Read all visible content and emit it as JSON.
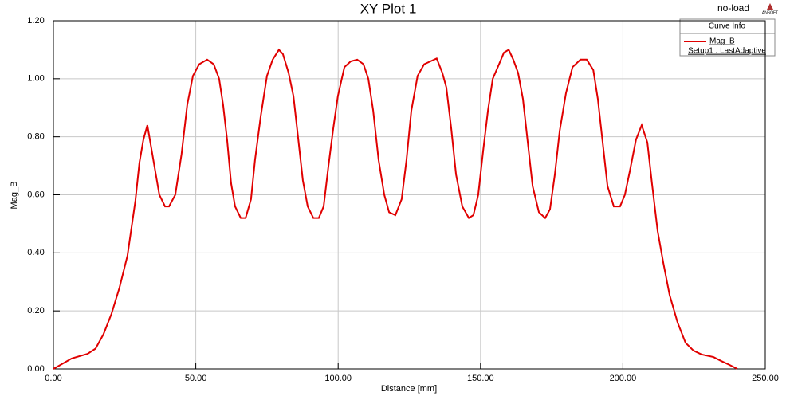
{
  "chart_data": {
    "type": "line",
    "title": "XY Plot 1",
    "annotation": "no-load",
    "logo": "ANSOFT",
    "x_label": "Distance [mm]",
    "y_label": "Mag_B",
    "legend_title": "Curve Info",
    "grid": true,
    "legend_position": "upper right",
    "xlim": [
      0,
      250
    ],
    "ylim": [
      0,
      1.2
    ],
    "xticks": [
      {
        "value": 0,
        "label": "0.00"
      },
      {
        "value": 50,
        "label": "50.00"
      },
      {
        "value": 100,
        "label": "100.00"
      },
      {
        "value": 150,
        "label": "150.00"
      },
      {
        "value": 200,
        "label": "200.00"
      },
      {
        "value": 250,
        "label": "250.00"
      }
    ],
    "yticks": [
      {
        "value": 0,
        "label": "0.00"
      },
      {
        "value": 0.2,
        "label": "0.20"
      },
      {
        "value": 0.4,
        "label": "0.40"
      },
      {
        "value": 0.6,
        "label": "0.60"
      },
      {
        "value": 0.8,
        "label": "0.80"
      },
      {
        "value": 1.0,
        "label": "1.00"
      },
      {
        "value": 1.2,
        "label": "1.20"
      }
    ],
    "x": [
      0,
      6.4,
      9.2,
      12,
      14.8,
      17.6,
      20.4,
      23.2,
      26,
      28.8,
      30.2,
      31.6,
      33,
      34.4,
      35.8,
      37.2,
      39.2,
      40.6,
      42.8,
      45,
      47,
      49,
      51.2,
      54,
      56.3,
      58.2,
      59.6,
      61,
      62.4,
      63.8,
      65.8,
      67.5,
      69.4,
      70.8,
      72.8,
      75,
      77,
      79.2,
      80.6,
      82.6,
      84.3,
      85.9,
      87.6,
      89.3,
      91.3,
      93.2,
      94.9,
      96.6,
      98.3,
      99.9,
      102.2,
      104.4,
      106.7,
      108.9,
      110.6,
      112.3,
      114.2,
      116.2,
      117.9,
      120.1,
      122.3,
      124,
      125.7,
      127.9,
      130.2,
      132.4,
      134.6,
      136.6,
      138,
      139.7,
      141.4,
      143.6,
      145.9,
      147.5,
      149.2,
      150.9,
      152.6,
      154.3,
      156.5,
      158.2,
      159.9,
      161.5,
      163.2,
      164.9,
      166.6,
      168.3,
      170.5,
      172.7,
      174.4,
      176.1,
      177.8,
      180,
      182.3,
      185.1,
      187.3,
      189.6,
      191.2,
      192.9,
      194.6,
      196.8,
      199,
      200.7,
      202.4,
      204.6,
      206.6,
      208.6,
      210.2,
      212.2,
      214.2,
      216.4,
      219.2,
      222,
      224.8,
      227.6,
      231.8,
      234.6,
      237.4,
      240.2
    ],
    "series": [
      {
        "name": "Mag_B",
        "setup": "Setup1 : LastAdaptive",
        "color": "#e00000",
        "values": [
          0,
          0.036,
          0.044,
          0.052,
          0.07,
          0.12,
          0.19,
          0.28,
          0.39,
          0.58,
          0.71,
          0.79,
          0.84,
          0.76,
          0.68,
          0.6,
          0.56,
          0.56,
          0.6,
          0.74,
          0.91,
          1.01,
          1.05,
          1.066,
          1.05,
          1.0,
          0.91,
          0.79,
          0.64,
          0.56,
          0.52,
          0.52,
          0.585,
          0.72,
          0.87,
          1.01,
          1.066,
          1.1,
          1.085,
          1.02,
          0.94,
          0.8,
          0.65,
          0.56,
          0.52,
          0.52,
          0.56,
          0.7,
          0.83,
          0.94,
          1.04,
          1.06,
          1.066,
          1.05,
          1.0,
          0.89,
          0.72,
          0.6,
          0.54,
          0.53,
          0.585,
          0.72,
          0.89,
          1.01,
          1.05,
          1.06,
          1.07,
          1.02,
          0.97,
          0.83,
          0.67,
          0.56,
          0.52,
          0.53,
          0.6,
          0.75,
          0.89,
          1.0,
          1.05,
          1.09,
          1.1,
          1.066,
          1.02,
          0.93,
          0.78,
          0.63,
          0.54,
          0.52,
          0.55,
          0.67,
          0.82,
          0.95,
          1.04,
          1.066,
          1.066,
          1.03,
          0.93,
          0.78,
          0.63,
          0.56,
          0.56,
          0.6,
          0.68,
          0.79,
          0.84,
          0.78,
          0.64,
          0.475,
          0.365,
          0.255,
          0.16,
          0.09,
          0.063,
          0.05,
          0.041,
          0.027,
          0.014,
          0
        ]
      }
    ]
  }
}
